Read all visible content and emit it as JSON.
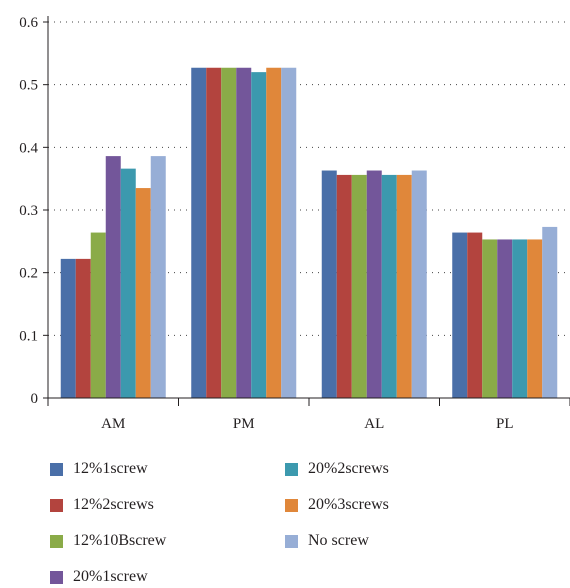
{
  "chart_data": {
    "type": "bar",
    "title": "",
    "xlabel": "",
    "ylabel": "",
    "categories": [
      "AM",
      "PM",
      "AL",
      "PL"
    ],
    "ylim": [
      0,
      0.6
    ],
    "yticks": [
      "0",
      "0.1",
      "0.2",
      "0.3",
      "0.4",
      "0.5",
      "0.6"
    ],
    "grid": "horizontal dotted",
    "legend_position": "bottom",
    "series": [
      {
        "name": "12%1screw",
        "color": "#4a6fa8",
        "values": [
          0.222,
          0.527,
          0.363,
          0.264
        ]
      },
      {
        "name": "12%2screws",
        "color": "#b3443e",
        "values": [
          0.222,
          0.527,
          0.356,
          0.264
        ]
      },
      {
        "name": "12%10Bscrew",
        "color": "#8aab48",
        "values": [
          0.264,
          0.527,
          0.356,
          0.253
        ]
      },
      {
        "name": "20%1screw",
        "color": "#73569a",
        "values": [
          0.386,
          0.527,
          0.363,
          0.253
        ]
      },
      {
        "name": "20%2screws",
        "color": "#3c99ae",
        "values": [
          0.366,
          0.52,
          0.356,
          0.253
        ]
      },
      {
        "name": "20%3screws",
        "color": "#e0873a",
        "values": [
          0.335,
          0.527,
          0.356,
          0.253
        ]
      },
      {
        "name": "No screw",
        "color": "#97aed6",
        "values": [
          0.386,
          0.527,
          0.363,
          0.273
        ]
      }
    ]
  }
}
